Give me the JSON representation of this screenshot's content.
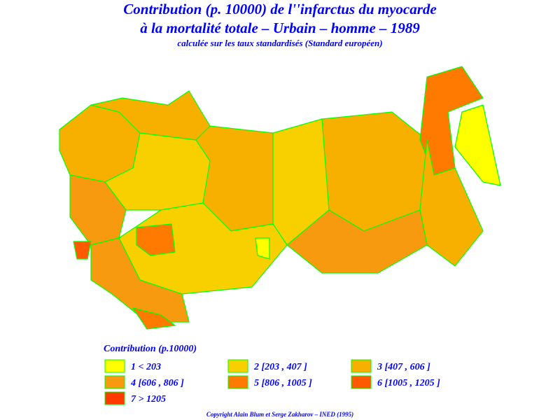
{
  "title": [
    "Contribution (p. 10000) de l''infarctus du myocarde",
    "à la mortalité totale – Urbain – homme – 1989"
  ],
  "subtitle": "calculée sur les taux standardisés (Standard européen)",
  "legend": {
    "title": "Contribution (p.10000)",
    "items": [
      {
        "label": "1 < 203",
        "color": "#ffff00"
      },
      {
        "label": "2 [203 , 407 ]",
        "color": "#f8d000"
      },
      {
        "label": "3 [407 , 606 ]",
        "color": "#f8b000"
      },
      {
        "label": "4 [606 , 806 ]",
        "color": "#f89a10"
      },
      {
        "label": "5 [806 , 1005 ]",
        "color": "#ff7a00"
      },
      {
        "label": "6 [1005 , 1205 ]",
        "color": "#ff5a00"
      },
      {
        "label": "7 > 1205",
        "color": "#ff3a00"
      }
    ]
  },
  "copyright": "Copyright Alain Blum et Serge Zakharov – INED (1995)"
}
